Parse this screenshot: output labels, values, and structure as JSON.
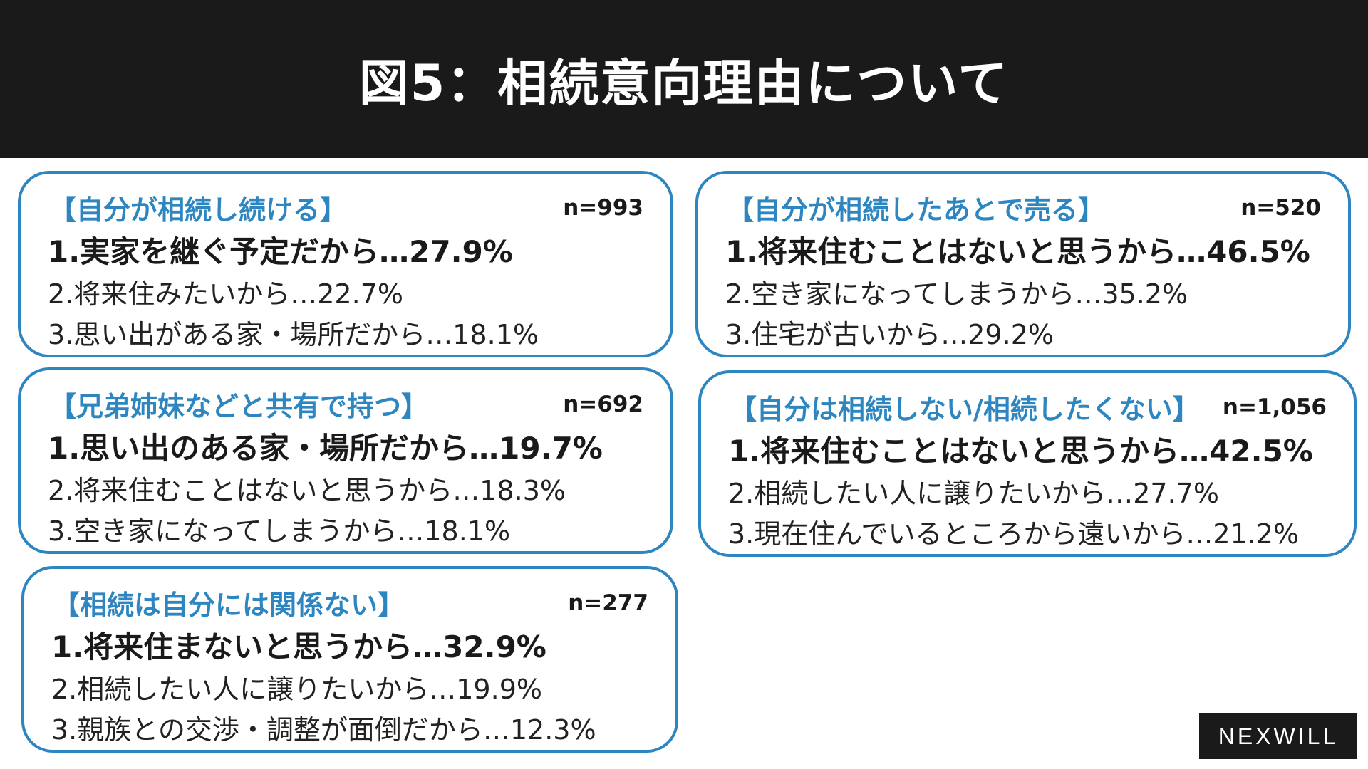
{
  "title": "図5：相続意向理由について",
  "cards": [
    {
      "category": "【自分が相続し続ける】",
      "n": "n=993",
      "reason1": "1.実家を継ぐ予定だから…27.9%",
      "reason2": "2.将来住みたいから…22.7%",
      "reason3": "3.思い出がある家・場所だから…18.1%"
    },
    {
      "category": "【自分が相続したあとで売る】",
      "n": "n=520",
      "reason1": "1.将来住むことはないと思うから…46.5%",
      "reason2": "2.空き家になってしまうから…35.2%",
      "reason3": "3.住宅が古いから…29.2%"
    },
    {
      "category": "【兄弟姉妹などと共有で持つ】",
      "n": "n=692",
      "reason1": "1.思い出のある家・場所だから…19.7%",
      "reason2": "2.将来住むことはないと思うから…18.3%",
      "reason3": "3.空き家になってしまうから…18.1%"
    },
    {
      "category": "【自分は相続しない/相続したくない】",
      "n": "n=1,056",
      "reason1": "1.将来住むことはないと思うから…42.5%",
      "reason2": "2.相続したい人に譲りたいから…27.7%",
      "reason3": "3.現在住んでいるところから遠いから…21.2%"
    },
    {
      "category": "【相続は自分には関係ない】",
      "n": "n=277",
      "reason1": "1.将来住まないと思うから…32.9%",
      "reason2": "2.相続したい人に譲りたいから…19.9%",
      "reason3": "3.親族との交渉・調整が面倒だから…12.3%"
    }
  ],
  "logo": "NEXWILL",
  "colors": {
    "accent": "#2e86c1",
    "header_bg": "#1a1a1a",
    "text": "#1a1a1a"
  }
}
